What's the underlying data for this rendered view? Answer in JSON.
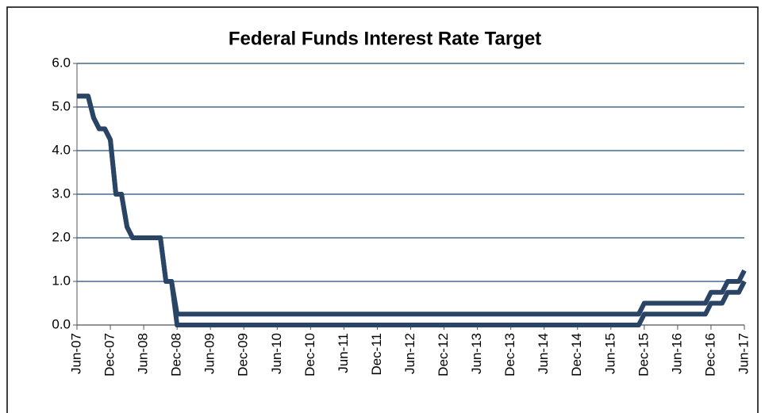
{
  "chart_data": {
    "type": "line",
    "title": "Federal Funds Interest Rate Target",
    "categories": [
      "Jun-07",
      null,
      null,
      null,
      null,
      null,
      "Dec-07",
      null,
      null,
      null,
      null,
      null,
      "Jun-08",
      null,
      null,
      null,
      null,
      null,
      "Dec-08",
      null,
      null,
      null,
      null,
      null,
      "Jun-09",
      null,
      null,
      null,
      null,
      null,
      "Dec-09",
      null,
      null,
      null,
      null,
      null,
      "Jun-10",
      null,
      null,
      null,
      null,
      null,
      "Dec-10",
      null,
      null,
      null,
      null,
      null,
      "Jun-11",
      null,
      null,
      null,
      null,
      null,
      "Dec-11",
      null,
      null,
      null,
      null,
      null,
      "Jun-12",
      null,
      null,
      null,
      null,
      null,
      "Dec-12",
      null,
      null,
      null,
      null,
      null,
      "Jun-13",
      null,
      null,
      null,
      null,
      null,
      "Dec-13",
      null,
      null,
      null,
      null,
      null,
      "Jun-14",
      null,
      null,
      null,
      null,
      null,
      "Dec-14",
      null,
      null,
      null,
      null,
      null,
      "Jun-15",
      null,
      null,
      null,
      null,
      null,
      "Dec-15",
      null,
      null,
      null,
      null,
      null,
      "Jun-16",
      null,
      null,
      null,
      null,
      null,
      "Dec-16",
      null,
      null,
      null,
      null,
      null,
      "Jun-17"
    ],
    "series": [
      {
        "color": "#2a4466",
        "values": [
          5.25,
          5.25,
          5.25,
          4.75,
          4.5,
          4.5,
          4.25,
          3.0,
          3.0,
          2.25,
          2.0,
          2.0,
          2.0,
          2.0,
          2.0,
          2.0,
          1.0,
          1.0,
          0.25,
          0.25,
          0.25,
          0.25,
          0.25,
          0.25,
          0.25,
          0.25,
          0.25,
          0.25,
          0.25,
          0.25,
          0.25,
          0.25,
          0.25,
          0.25,
          0.25,
          0.25,
          0.25,
          0.25,
          0.25,
          0.25,
          0.25,
          0.25,
          0.25,
          0.25,
          0.25,
          0.25,
          0.25,
          0.25,
          0.25,
          0.25,
          0.25,
          0.25,
          0.25,
          0.25,
          0.25,
          0.25,
          0.25,
          0.25,
          0.25,
          0.25,
          0.25,
          0.25,
          0.25,
          0.25,
          0.25,
          0.25,
          0.25,
          0.25,
          0.25,
          0.25,
          0.25,
          0.25,
          0.25,
          0.25,
          0.25,
          0.25,
          0.25,
          0.25,
          0.25,
          0.25,
          0.25,
          0.25,
          0.25,
          0.25,
          0.25,
          0.25,
          0.25,
          0.25,
          0.25,
          0.25,
          0.25,
          0.25,
          0.25,
          0.25,
          0.25,
          0.25,
          0.25,
          0.25,
          0.25,
          0.25,
          0.25,
          0.25,
          0.5,
          0.5,
          0.5,
          0.5,
          0.5,
          0.5,
          0.5,
          0.5,
          0.5,
          0.5,
          0.5,
          0.5,
          0.75,
          0.75,
          0.75,
          1.0,
          1.0,
          1.0,
          1.25
        ]
      },
      {
        "color": "#2a4466",
        "values": [
          5.25,
          5.25,
          5.25,
          4.75,
          4.5,
          4.5,
          4.25,
          3.0,
          3.0,
          2.25,
          2.0,
          2.0,
          2.0,
          2.0,
          2.0,
          2.0,
          1.0,
          1.0,
          0,
          0,
          0,
          0,
          0,
          0,
          0,
          0,
          0,
          0,
          0,
          0,
          0,
          0,
          0,
          0,
          0,
          0,
          0,
          0,
          0,
          0,
          0,
          0,
          0,
          0,
          0,
          0,
          0,
          0,
          0,
          0,
          0,
          0,
          0,
          0,
          0,
          0,
          0,
          0,
          0,
          0,
          0,
          0,
          0,
          0,
          0,
          0,
          0,
          0,
          0,
          0,
          0,
          0,
          0,
          0,
          0,
          0,
          0,
          0,
          0,
          0,
          0,
          0,
          0,
          0,
          0,
          0,
          0,
          0,
          0,
          0,
          0,
          0,
          0,
          0,
          0,
          0,
          0,
          0,
          0,
          0,
          0,
          0,
          0.25,
          0.25,
          0.25,
          0.25,
          0.25,
          0.25,
          0.25,
          0.25,
          0.25,
          0.25,
          0.25,
          0.25,
          0.5,
          0.5,
          0.5,
          0.75,
          0.75,
          0.75,
          1.0
        ]
      }
    ],
    "ylim": [
      0,
      6
    ],
    "yticks": [
      {
        "value": 0,
        "label": "0.0"
      },
      {
        "value": 1,
        "label": "1.0"
      },
      {
        "value": 2,
        "label": "2.0"
      },
      {
        "value": 3,
        "label": "3.0"
      },
      {
        "value": 4,
        "label": "4.0"
      },
      {
        "value": 5,
        "label": "5.0"
      },
      {
        "value": 6,
        "label": "6.0"
      }
    ],
    "grid": true
  }
}
